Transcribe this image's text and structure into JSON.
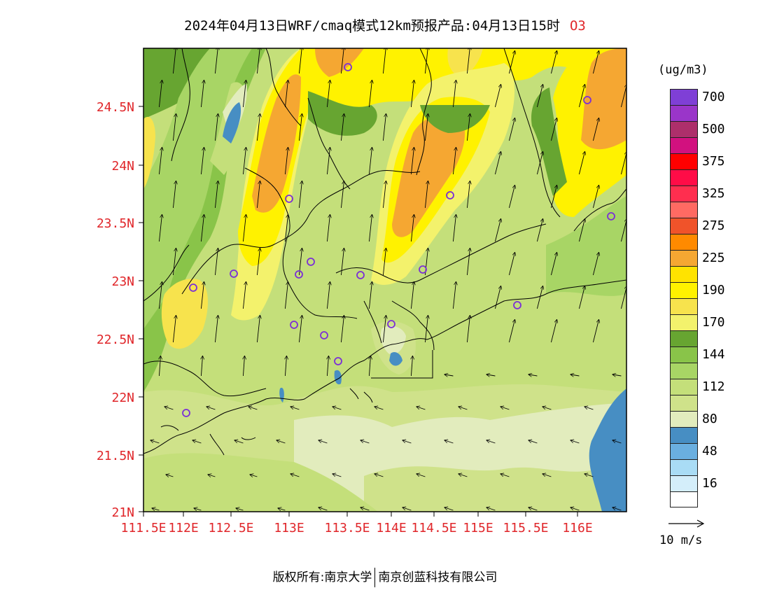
{
  "header": {
    "title": "2024年04月13日WRF/cmaq模式12km预报产品:04月13日15时",
    "pollutant": "O3"
  },
  "map": {
    "lat_labels": [
      "24.5N",
      "24N",
      "23.5N",
      "23N",
      "22.5N",
      "22N",
      "21.5N",
      "21N"
    ],
    "lon_labels": [
      "111.5E",
      "112E",
      "112.5E",
      "113E",
      "113.5E",
      "114E",
      "114.5E",
      "115E",
      "115.5E",
      "116E"
    ],
    "axis_label_color": "#e0262a",
    "station_marker": "circle-icon",
    "wind_vector": "arrow-icon"
  },
  "legend": {
    "unit": "(ug/m3)",
    "bins": [
      {
        "label": "700",
        "color": "#7f3fd6"
      },
      {
        "label": "",
        "color": "#9a35c9"
      },
      {
        "label": "500",
        "color": "#ad2f6b"
      },
      {
        "label": "",
        "color": "#d2117f"
      },
      {
        "label": "375",
        "color": "#ff0000"
      },
      {
        "label": "",
        "color": "#ff0c47"
      },
      {
        "label": "325",
        "color": "#ff2e4f"
      },
      {
        "label": "",
        "color": "#ff6a63"
      },
      {
        "label": "275",
        "color": "#f0532a"
      },
      {
        "label": "",
        "color": "#ff8a00"
      },
      {
        "label": "225",
        "color": "#f5a732"
      },
      {
        "label": "",
        "color": "#ffe300"
      },
      {
        "label": "190",
        "color": "#fff200"
      },
      {
        "label": "",
        "color": "#f7e34d"
      },
      {
        "label": "170",
        "color": "#f3f26c"
      },
      {
        "label": "",
        "color": "#67a531"
      },
      {
        "label": "144",
        "color": "#89c449"
      },
      {
        "label": "",
        "color": "#a8d565"
      },
      {
        "label": "112",
        "color": "#c4df7a"
      },
      {
        "label": "",
        "color": "#cfe28a"
      },
      {
        "label": "80",
        "color": "#e2ecbd"
      },
      {
        "label": "",
        "color": "#478ec3"
      },
      {
        "label": "48",
        "color": "#6aafe0"
      },
      {
        "label": "",
        "color": "#a9dcf5"
      },
      {
        "label": "16",
        "color": "#d4eefa"
      },
      {
        "label": "",
        "color": "#ffffff"
      }
    ]
  },
  "vector_reference": {
    "label": "10 m/s"
  },
  "footer": {
    "left": "版权所有:南京大学",
    "right": "南京创蓝科技有限公司"
  }
}
